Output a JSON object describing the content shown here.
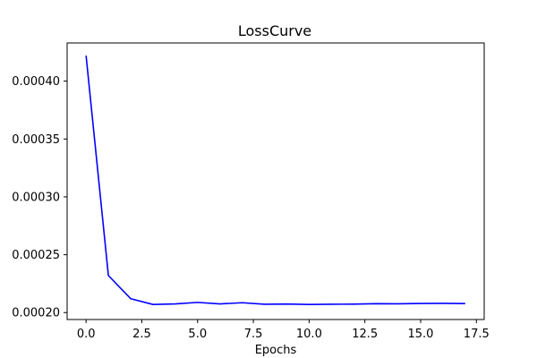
{
  "chart_data": {
    "type": "line",
    "title": "LossCurve",
    "xlabel": "Epochs",
    "ylabel": "",
    "xlim": [
      -0.85,
      17.85
    ],
    "ylim": [
      0.000194,
      0.000433
    ],
    "x_ticks": [
      0,
      2.5,
      5,
      7.5,
      10,
      12.5,
      15,
      17.5
    ],
    "x_tick_labels": [
      "0.0",
      "2.5",
      "5.0",
      "7.5",
      "10.0",
      "12.5",
      "15.0",
      "17.5"
    ],
    "y_ticks": [
      0.0002,
      0.00025,
      0.0003,
      0.00035,
      0.0004
    ],
    "y_tick_labels": [
      "0.00020",
      "0.00025",
      "0.00030",
      "0.00035",
      "0.00040"
    ],
    "grid": false,
    "series": [
      {
        "color": "#0000ff",
        "x": [
          0,
          1,
          2,
          3,
          4,
          5,
          6,
          7,
          8,
          9,
          10,
          11,
          12,
          13,
          14,
          15,
          16,
          17
        ],
        "y": [
          0.000422,
          0.000232,
          0.000212,
          0.000207,
          0.0002075,
          0.0002088,
          0.0002075,
          0.0002085,
          0.0002072,
          0.0002074,
          0.000207,
          0.0002072,
          0.0002073,
          0.0002077,
          0.0002076,
          0.0002079,
          0.000208,
          0.0002078
        ]
      }
    ]
  }
}
